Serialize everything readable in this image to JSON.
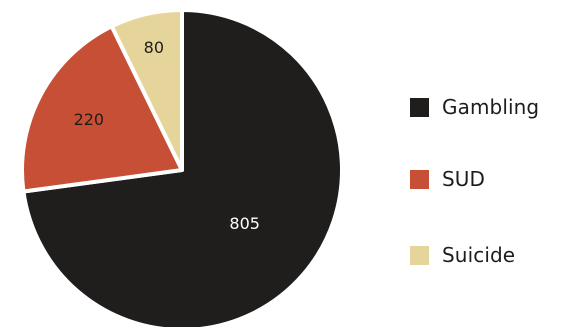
{
  "chart_data": {
    "type": "pie",
    "categories": [
      "Gambling",
      "SUD",
      "Suicide"
    ],
    "values": [
      805,
      220,
      80
    ],
    "colors": [
      "#201d1d",
      "#c74f35",
      "#e6d59b"
    ],
    "label_colors": [
      "#ffffff",
      "#1f1d1c",
      "#1f1d1c"
    ],
    "data_labels": [
      "805",
      "220",
      "80"
    ],
    "start_angle_deg": 0,
    "direction": "clockwise",
    "legend_position": "right",
    "title": "",
    "xlabel": "",
    "ylabel": ""
  }
}
